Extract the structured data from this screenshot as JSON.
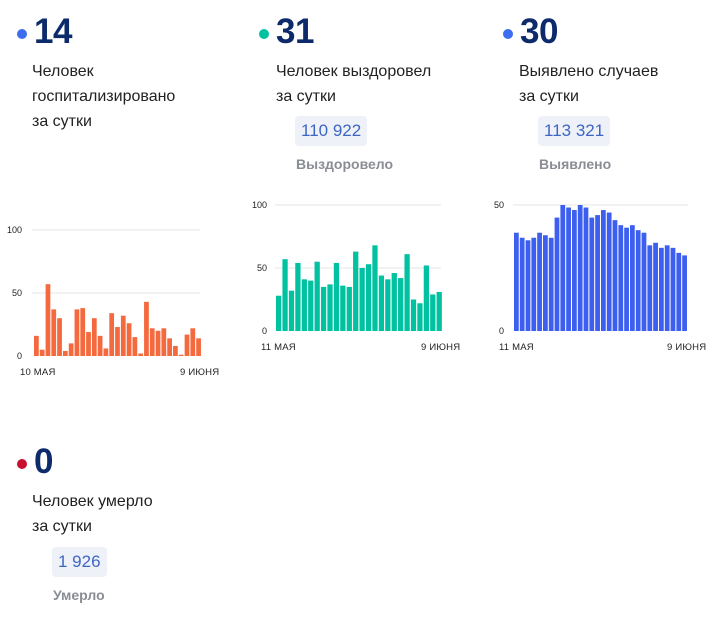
{
  "hospitalized": {
    "number": "14",
    "line1": "Человек",
    "line2": "госпитализировано",
    "line3": "за сутки",
    "dot_color": "#3d6ef0"
  },
  "recovered": {
    "number": "31",
    "line1": "Человек выздоровел",
    "line2": "за сутки",
    "total": "110 922",
    "total_label": "Выздоровело",
    "dot_color": "#00c2a0"
  },
  "cases": {
    "number": "30",
    "line1": "Выявлено случаев",
    "line2": "за сутки",
    "total": "113 321",
    "total_label": "Выявлено",
    "dot_color": "#3d6ef0"
  },
  "deaths": {
    "number": "0",
    "line1": "Человек умерло",
    "line2": "за сутки",
    "total": "1 926",
    "total_label": "Умерло",
    "dot_color": "#c8102e"
  },
  "chart_data": [
    {
      "type": "bar",
      "color": "#f46a3e",
      "ylim": [
        0,
        100
      ],
      "yticks": [
        0,
        50,
        100
      ],
      "xtick_labels": [
        "10 МАЯ",
        "9 ИЮНЯ"
      ],
      "values": [
        16,
        5,
        57,
        37,
        30,
        4,
        10,
        37,
        38,
        19,
        30,
        16,
        6,
        34,
        23,
        32,
        26,
        15,
        2,
        43,
        22,
        20,
        22,
        14,
        8,
        1,
        17,
        22,
        14
      ],
      "grid": true
    },
    {
      "type": "bar",
      "color": "#00c2a0",
      "ylim": [
        0,
        100
      ],
      "yticks": [
        0,
        50,
        100
      ],
      "xtick_labels": [
        "11 МАЯ",
        "9 ИЮНЯ"
      ],
      "values": [
        28,
        57,
        32,
        54,
        41,
        40,
        55,
        35,
        37,
        54,
        36,
        35,
        63,
        50,
        53,
        68,
        44,
        41,
        46,
        42,
        61,
        25,
        22,
        52,
        29,
        31
      ],
      "grid": true
    },
    {
      "type": "bar",
      "color": "#3d5ff0",
      "ylim": [
        0,
        50
      ],
      "yticks": [
        0,
        50
      ],
      "xtick_labels": [
        "11 МАЯ",
        "9 ИЮНЯ"
      ],
      "values": [
        39,
        37,
        36,
        37,
        39,
        38,
        37,
        45,
        50,
        49,
        48,
        50,
        49,
        45,
        46,
        48,
        47,
        44,
        42,
        41,
        42,
        40,
        39,
        34,
        35,
        33,
        34,
        33,
        31,
        30
      ],
      "grid": true
    }
  ]
}
